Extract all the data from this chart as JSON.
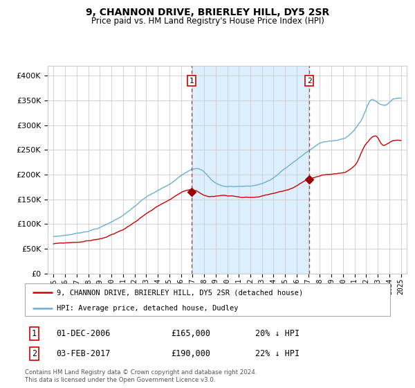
{
  "title": "9, CHANNON DRIVE, BRIERLEY HILL, DY5 2SR",
  "subtitle": "Price paid vs. HM Land Registry's House Price Index (HPI)",
  "hpi_legend": "HPI: Average price, detached house, Dudley",
  "price_legend": "9, CHANNON DRIVE, BRIERLEY HILL, DY5 2SR (detached house)",
  "transaction1_date": 2006.92,
  "transaction1_price": 165000,
  "transaction1_label": "01-DEC-2006",
  "transaction1_pct": "20% ↓ HPI",
  "transaction2_date": 2017.09,
  "transaction2_price": 190000,
  "transaction2_label": "03-FEB-2017",
  "transaction2_pct": "22% ↓ HPI",
  "hpi_color": "#6aaed6",
  "price_color": "#cc0000",
  "marker_color": "#990000",
  "vline_color": "#cc3333",
  "shade_color": "#ddeeff",
  "bg_color": "#ffffff",
  "grid_color": "#cccccc",
  "ylim": [
    0,
    420000
  ],
  "yticks": [
    0,
    50000,
    100000,
    150000,
    200000,
    250000,
    300000,
    350000,
    400000
  ],
  "xlim_start": 1994.5,
  "xlim_end": 2025.5,
  "footer": "Contains HM Land Registry data © Crown copyright and database right 2024.\nThis data is licensed under the Open Government Licence v3.0.",
  "label1": "1",
  "label2": "2"
}
